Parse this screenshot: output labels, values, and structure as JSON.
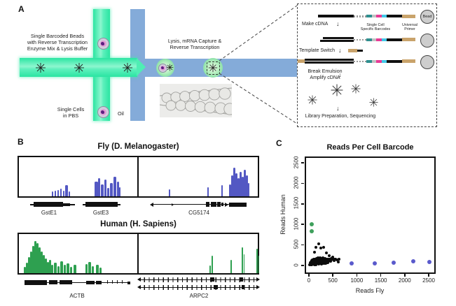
{
  "panel_a": {
    "label": "A",
    "labels": {
      "beads_inlet": [
        "Single Barcoded Beads",
        "with Reverse Transcription",
        "Enzyme Mix & Lysis Buffer"
      ],
      "cells_inlet": [
        "Single Cells",
        "in PBS"
      ],
      "oil": "Oil",
      "droplet_caption": [
        "Lysis, mRNA Capture &",
        "Reverse Transcription"
      ]
    },
    "workflow": {
      "step_make_cdna": "Make cDNA",
      "barcode_label": [
        "Single Cell",
        "Specific Barcodes"
      ],
      "primer_label": [
        "Universal",
        "Primer"
      ],
      "bead_label": "Bead",
      "step_template_switch": "Template Switch",
      "step_break_emulsion": [
        "Break Emulsion",
        "Amplify cDNA"
      ],
      "step_library": "Library Preparation, Sequencing"
    }
  },
  "panel_b": {
    "label": "B",
    "fly_title": "Fly (D. Melanogaster)",
    "human_title": "Human (H. Sapiens)",
    "gene_labels": {
      "gste1": "GstE1",
      "gste3": "GstE3",
      "cg5174": "CG5174",
      "actb": "ACTB",
      "arpc2": "ARPC2"
    },
    "track_colors": {
      "fly": "#5358C3",
      "human": "#2EA050"
    },
    "tracks": {
      "fly_left": [
        [
          47,
          2,
          7
        ],
        [
          51,
          2,
          8
        ],
        [
          55,
          2,
          9
        ],
        [
          59,
          2,
          11
        ],
        [
          63,
          2,
          8
        ],
        [
          66,
          4,
          16
        ],
        [
          71,
          2,
          7
        ],
        [
          108,
          5,
          21
        ],
        [
          113,
          3,
          26
        ],
        [
          117,
          4,
          17
        ],
        [
          122,
          3,
          24
        ],
        [
          126,
          3,
          12
        ],
        [
          130,
          4,
          19
        ],
        [
          135,
          4,
          28
        ],
        [
          140,
          3,
          21
        ],
        [
          143,
          2,
          13
        ]
      ],
      "fly_right": [
        [
          43,
          2,
          10
        ],
        [
          98,
          2,
          13
        ],
        [
          118,
          2,
          16
        ],
        [
          129,
          3,
          17
        ],
        [
          132,
          3,
          30
        ],
        [
          135,
          3,
          41
        ],
        [
          138,
          3,
          33
        ],
        [
          141,
          3,
          26
        ],
        [
          144,
          3,
          35
        ],
        [
          147,
          3,
          28
        ],
        [
          150,
          3,
          38
        ],
        [
          153,
          3,
          30
        ],
        [
          156,
          2,
          19
        ]
      ],
      "human_left": [
        [
          7,
          3,
          9
        ],
        [
          10,
          3,
          15
        ],
        [
          13,
          3,
          23
        ],
        [
          16,
          3,
          31
        ],
        [
          19,
          3,
          39
        ],
        [
          22,
          3,
          46
        ],
        [
          25,
          3,
          43
        ],
        [
          28,
          3,
          37
        ],
        [
          31,
          3,
          31
        ],
        [
          34,
          3,
          26
        ],
        [
          37,
          3,
          21
        ],
        [
          40,
          3,
          16
        ],
        [
          43,
          3,
          19
        ],
        [
          46,
          3,
          12
        ],
        [
          50,
          4,
          15
        ],
        [
          55,
          3,
          10
        ],
        [
          59,
          4,
          17
        ],
        [
          64,
          3,
          12
        ],
        [
          68,
          4,
          14
        ],
        [
          73,
          3,
          9
        ],
        [
          78,
          4,
          12
        ],
        [
          95,
          3,
          13
        ],
        [
          99,
          4,
          16
        ],
        [
          104,
          3,
          10
        ],
        [
          110,
          4,
          12
        ],
        [
          115,
          3,
          8
        ]
      ],
      "human_right": [
        [
          101,
          2,
          11
        ],
        [
          104,
          2,
          25
        ],
        [
          131,
          2,
          19
        ],
        [
          147,
          2,
          37
        ],
        [
          150,
          1,
          27
        ],
        [
          168,
          2,
          35
        ],
        [
          171,
          1,
          25
        ]
      ]
    }
  },
  "panel_c": {
    "label": "C"
  },
  "chart_data": {
    "type": "scatter",
    "title": "Reads Per Cell Barcode",
    "xlabel": "Reads Fly",
    "ylabel": "Reads Human",
    "xlim": [
      0,
      2600
    ],
    "ylim": [
      0,
      2600
    ],
    "xticks": [
      0,
      500,
      1000,
      1500,
      2000,
      2500
    ],
    "yticks": [
      0,
      500,
      1000,
      1500,
      2000,
      2500
    ],
    "grid": false,
    "legend": false,
    "series": [
      {
        "name": "human-dominant-barcodes",
        "color": "#3FA05C",
        "size": 6,
        "points": [
          [
            55,
            1000
          ],
          [
            60,
            840
          ]
        ]
      },
      {
        "name": "mixed-low-count-barcodes",
        "color": "#0d0d0d",
        "size": 4,
        "points": [
          [
            20,
            15
          ],
          [
            30,
            40
          ],
          [
            35,
            70
          ],
          [
            40,
            25
          ],
          [
            45,
            55
          ],
          [
            50,
            90
          ],
          [
            55,
            20
          ],
          [
            60,
            120
          ],
          [
            65,
            45
          ],
          [
            70,
            80
          ],
          [
            75,
            30
          ],
          [
            80,
            140
          ],
          [
            85,
            60
          ],
          [
            90,
            100
          ],
          [
            95,
            35
          ],
          [
            100,
            160
          ],
          [
            105,
            70
          ],
          [
            110,
            25
          ],
          [
            115,
            120
          ],
          [
            120,
            330
          ],
          [
            120,
            50
          ],
          [
            125,
            90
          ],
          [
            130,
            150
          ],
          [
            135,
            40
          ],
          [
            140,
            110
          ],
          [
            145,
            65
          ],
          [
            150,
            440
          ],
          [
            150,
            25
          ],
          [
            155,
            130
          ],
          [
            160,
            85
          ],
          [
            165,
            170
          ],
          [
            170,
            45
          ],
          [
            175,
            105
          ],
          [
            180,
            140
          ],
          [
            185,
            60
          ],
          [
            190,
            190
          ],
          [
            195,
            90
          ],
          [
            200,
            530
          ],
          [
            200,
            30
          ],
          [
            205,
            120
          ],
          [
            210,
            160
          ],
          [
            215,
            70
          ],
          [
            220,
            100
          ],
          [
            225,
            140
          ],
          [
            230,
            50
          ],
          [
            235,
            180
          ],
          [
            240,
            90
          ],
          [
            245,
            125
          ],
          [
            250,
            430
          ],
          [
            250,
            60
          ],
          [
            255,
            150
          ],
          [
            260,
            100
          ],
          [
            265,
            35
          ],
          [
            270,
            170
          ],
          [
            275,
            115
          ],
          [
            280,
            75
          ],
          [
            285,
            145
          ],
          [
            290,
            50
          ],
          [
            295,
            185
          ],
          [
            300,
            105
          ],
          [
            305,
            65
          ],
          [
            310,
            450
          ],
          [
            310,
            135
          ],
          [
            315,
            90
          ],
          [
            320,
            155
          ],
          [
            325,
            45
          ],
          [
            330,
            115
          ],
          [
            335,
            170
          ],
          [
            340,
            75
          ],
          [
            345,
            130
          ],
          [
            350,
            95
          ],
          [
            355,
            55
          ],
          [
            360,
            310
          ],
          [
            360,
            140
          ],
          [
            365,
            100
          ],
          [
            370,
            160
          ],
          [
            375,
            70
          ],
          [
            380,
            125
          ],
          [
            385,
            85
          ],
          [
            390,
            150
          ],
          [
            395,
            110
          ],
          [
            400,
            60
          ],
          [
            405,
            135
          ],
          [
            410,
            95
          ],
          [
            420,
            155
          ],
          [
            430,
            230
          ],
          [
            435,
            120
          ],
          [
            445,
            160
          ],
          [
            455,
            110
          ],
          [
            465,
            175
          ],
          [
            475,
            135
          ],
          [
            490,
            200
          ],
          [
            505,
            150
          ],
          [
            520,
            125
          ],
          [
            540,
            160
          ],
          [
            560,
            145
          ],
          [
            585,
            135
          ],
          [
            610,
            90
          ],
          [
            630,
            150
          ]
        ]
      },
      {
        "name": "fly-dominant-barcodes",
        "color": "#5A5ACC",
        "size": 6,
        "points": [
          [
            890,
            45
          ],
          [
            1375,
            45
          ],
          [
            1770,
            70
          ],
          [
            2180,
            105
          ],
          [
            2520,
            90
          ]
        ]
      }
    ]
  }
}
